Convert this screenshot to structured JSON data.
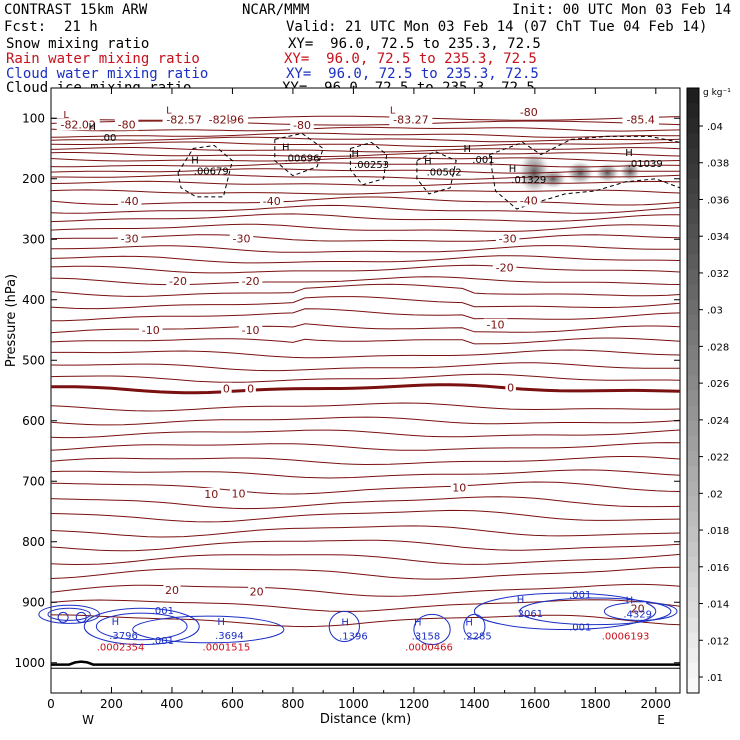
{
  "header": {
    "title": "CONTRAST 15km ARW",
    "center": "NCAR/MMM",
    "init": "Init: 00 UTC Mon 03 Feb 14",
    "fcst_label": "Fcst:",
    "fcst_value": "21 h",
    "valid": "Valid: 21 UTC Mon 03 Feb 14 (07 ChT Tue 04 Feb 14)",
    "fields": [
      {
        "name": "Snow mixing ratio",
        "xy": "XY=  96.0, 72.5 to 235.3, 72.5",
        "color": "#000000"
      },
      {
        "name": "Rain water mixing ratio",
        "xy": "XY=  96.0, 72.5 to 235.3, 72.5",
        "color": "#c8101a"
      },
      {
        "name": "Cloud water mixing ratio",
        "xy": "XY=  96.0, 72.5 to 235.3, 72.5",
        "color": "#1b2fc4"
      },
      {
        "name": "Cloud ice mixing ratio",
        "xy": "XY=  96.0, 72.5 to 235.3, 72.5",
        "color": "#000000"
      }
    ]
  },
  "chart_data": {
    "type": "contour",
    "xlabel": "Distance (km)",
    "ylabel": "Pressure (hPa)",
    "xlim": [
      0,
      2080
    ],
    "ylim": [
      1050,
      50
    ],
    "x_ticks": [
      0,
      200,
      400,
      600,
      800,
      1000,
      1200,
      1400,
      1600,
      1800,
      2000
    ],
    "y_ticks": [
      100,
      200,
      300,
      400,
      500,
      600,
      700,
      800,
      900,
      1000
    ],
    "x_end_labels": {
      "left": "W",
      "right": "E"
    },
    "colorbar": {
      "unit": "g kg⁻¹",
      "ticks": [
        ".04",
        ".038",
        ".036",
        ".034",
        ".032",
        ".03",
        ".028",
        ".026",
        ".024",
        ".022",
        ".02",
        ".018",
        ".016",
        ".014",
        ".012",
        ".01"
      ]
    },
    "temperature_contour_labels": [
      {
        "x": 90,
        "p": 110,
        "text": "-82.02"
      },
      {
        "x": 250,
        "p": 110,
        "text": "-80"
      },
      {
        "x": 440,
        "p": 102,
        "text": "-82.57"
      },
      {
        "x": 580,
        "p": 102,
        "text": "-82.96"
      },
      {
        "x": 830,
        "p": 111,
        "text": "-80"
      },
      {
        "x": 1190,
        "p": 102,
        "text": "-83.27"
      },
      {
        "x": 1580,
        "p": 90,
        "text": "-80"
      },
      {
        "x": 1950,
        "p": 102,
        "text": "-85.4"
      },
      {
        "x": 260,
        "p": 237,
        "text": "-40"
      },
      {
        "x": 730,
        "p": 237,
        "text": "-40"
      },
      {
        "x": 1580,
        "p": 236,
        "text": "-40"
      },
      {
        "x": 260,
        "p": 299,
        "text": "-30"
      },
      {
        "x": 630,
        "p": 299,
        "text": "-30"
      },
      {
        "x": 1510,
        "p": 299,
        "text": "-30"
      },
      {
        "x": 420,
        "p": 369,
        "text": "-20"
      },
      {
        "x": 660,
        "p": 369,
        "text": "-20"
      },
      {
        "x": 1500,
        "p": 347,
        "text": "-20"
      },
      {
        "x": 330,
        "p": 450,
        "text": "-10"
      },
      {
        "x": 660,
        "p": 450,
        "text": "-10"
      },
      {
        "x": 1470,
        "p": 441,
        "text": "-10"
      },
      {
        "x": 580,
        "p": 547,
        "text": "0"
      },
      {
        "x": 660,
        "p": 547,
        "text": "0"
      },
      {
        "x": 1520,
        "p": 545,
        "text": "0"
      },
      {
        "x": 530,
        "p": 721,
        "text": "10"
      },
      {
        "x": 620,
        "p": 720,
        "text": "10"
      },
      {
        "x": 1350,
        "p": 710,
        "text": "10"
      },
      {
        "x": 400,
        "p": 880,
        "text": "20"
      },
      {
        "x": 680,
        "p": 882,
        "text": "20"
      },
      {
        "x": 1940,
        "p": 910,
        "text": "20"
      }
    ],
    "snow_maxima": [
      {
        "x": 190,
        "p": 131,
        "text": ".00"
      },
      {
        "x": 530,
        "p": 186,
        "text": ".00679"
      },
      {
        "x": 830,
        "p": 165,
        "text": ".00696"
      },
      {
        "x": 1060,
        "p": 176,
        "text": ".00253"
      },
      {
        "x": 1300,
        "p": 188,
        "text": ".00502"
      },
      {
        "x": 1430,
        "p": 167,
        "text": ".001"
      },
      {
        "x": 1580,
        "p": 200,
        "text": ".01329"
      },
      {
        "x": 1965,
        "p": 174,
        "text": ".01039"
      }
    ],
    "cloud_water_maxima": [
      {
        "x": 240,
        "p": 954,
        "text": ".3796"
      },
      {
        "x": 370,
        "p": 913,
        "text": ".001"
      },
      {
        "x": 370,
        "p": 962,
        "text": ".001"
      },
      {
        "x": 590,
        "p": 954,
        "text": ".3694"
      },
      {
        "x": 1000,
        "p": 955,
        "text": ".1396"
      },
      {
        "x": 1240,
        "p": 955,
        "text": ".3158"
      },
      {
        "x": 1410,
        "p": 955,
        "text": ".2285"
      },
      {
        "x": 1580,
        "p": 918,
        "text": ".2061"
      },
      {
        "x": 1750,
        "p": 886,
        "text": ".001"
      },
      {
        "x": 1750,
        "p": 940,
        "text": ".001"
      },
      {
        "x": 1940,
        "p": 919,
        "text": ".4329"
      }
    ],
    "rain_maxima": [
      {
        "x": 230,
        "p": 973,
        "text": ".0002354"
      },
      {
        "x": 580,
        "p": 973,
        "text": ".0001515"
      },
      {
        "x": 1250,
        "p": 973,
        "text": ".0000466"
      },
      {
        "x": 1900,
        "p": 955,
        "text": ".0006193"
      }
    ],
    "low_markers": [
      {
        "x": 50,
        "p": 95
      },
      {
        "x": 390,
        "p": 87
      },
      {
        "x": 590,
        "p": 100
      },
      {
        "x": 1130,
        "p": 87
      }
    ],
    "colors": {
      "temperature": "#7a1010",
      "zero_isotherm": "#7a1010",
      "cloud_water": "#1b2fc4",
      "rain": "#c8101a",
      "snow": "#000000"
    }
  }
}
